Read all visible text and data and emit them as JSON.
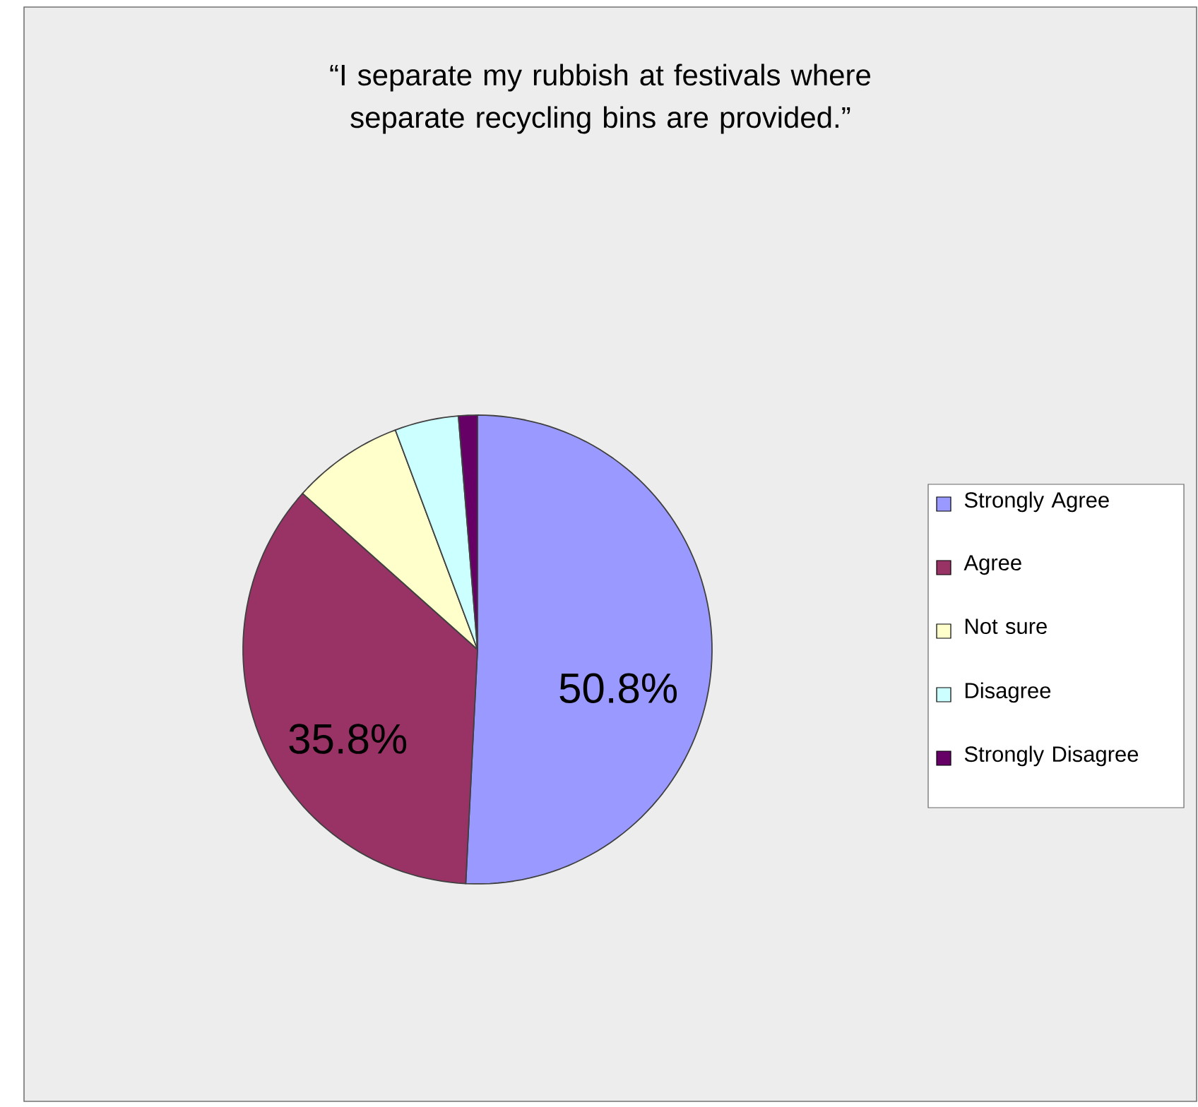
{
  "chart_data": {
    "type": "pie",
    "title": "“I separate my rubbish at festivals where separate recycling bins are provided.”",
    "categories": [
      "Strongly Agree",
      "Agree",
      "Not sure",
      "Disagree",
      "Strongly Disagree"
    ],
    "values": [
      50.8,
      35.8,
      7.7,
      4.4,
      1.3
    ],
    "colors": [
      "#9999ff",
      "#993366",
      "#ffffcc",
      "#ccffff",
      "#660066"
    ],
    "value_labels": [
      "50.8%",
      "35.8%",
      null,
      null,
      null
    ],
    "legend": "right"
  }
}
